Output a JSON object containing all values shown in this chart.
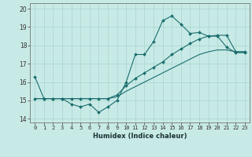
{
  "title": "",
  "xlabel": "Humidex (Indice chaleur)",
  "x": [
    0,
    1,
    2,
    3,
    4,
    5,
    6,
    7,
    8,
    9,
    10,
    11,
    12,
    13,
    14,
    15,
    16,
    17,
    18,
    19,
    20,
    21,
    22,
    23
  ],
  "line1": [
    16.3,
    15.1,
    15.1,
    15.1,
    14.8,
    14.65,
    14.8,
    14.35,
    14.65,
    15.0,
    16.0,
    17.5,
    17.5,
    18.2,
    19.35,
    19.6,
    19.15,
    18.65,
    18.7,
    18.5,
    18.5,
    17.9,
    17.6,
    17.6
  ],
  "line2": [
    15.1,
    15.1,
    15.1,
    15.1,
    15.1,
    15.1,
    15.1,
    15.1,
    15.1,
    15.3,
    15.8,
    16.2,
    16.5,
    16.8,
    17.1,
    17.5,
    17.8,
    18.1,
    18.35,
    18.5,
    18.55,
    18.55,
    17.65,
    17.65
  ],
  "line3": [
    15.1,
    15.1,
    15.1,
    15.1,
    15.1,
    15.1,
    15.1,
    15.1,
    15.1,
    15.2,
    15.5,
    15.75,
    16.0,
    16.25,
    16.5,
    16.75,
    17.0,
    17.25,
    17.5,
    17.65,
    17.75,
    17.75,
    17.65,
    17.65
  ],
  "bg_color": "#c8eae6",
  "line_color": "#1a6e6e",
  "grid_color": "#a8d4cf",
  "ylim": [
    13.8,
    20.3
  ],
  "xlim": [
    -0.5,
    23.5
  ],
  "yticks": [
    14,
    15,
    16,
    17,
    18,
    19,
    20
  ],
  "xticks": [
    0,
    1,
    2,
    3,
    4,
    5,
    6,
    7,
    8,
    9,
    10,
    11,
    12,
    13,
    14,
    15,
    16,
    17,
    18,
    19,
    20,
    21,
    22,
    23
  ],
  "xtick_labels": [
    "0",
    "1",
    "2",
    "3",
    "4",
    "5",
    "6",
    "7",
    "8",
    "9",
    "10",
    "11",
    "12",
    "13",
    "14",
    "15",
    "16",
    "17",
    "18",
    "19",
    "20",
    "21",
    "22",
    "23"
  ]
}
